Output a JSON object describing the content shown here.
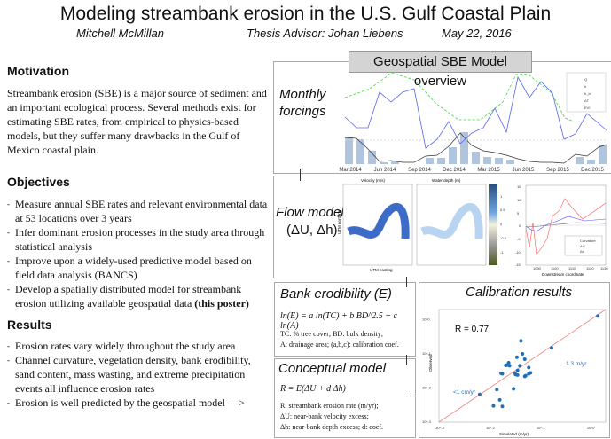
{
  "header": {
    "title": "Modeling streambank erosion in the U.S. Gulf Coastal Plain",
    "author": "Mitchell McMillan",
    "advisor": "Thesis Advisor: Johan Liebens",
    "date": "May 22, 2016"
  },
  "motivation": {
    "heading": "Motivation",
    "text": "Streambank erosion (SBE) is a major source of sediment and an important ecological process. Several methods exist for estimating SBE rates, from empirical to physics-based models, but they suffer many drawbacks in the Gulf of Mexico coastal plain."
  },
  "objectives": {
    "heading": "Objectives",
    "items": [
      "Measure annual SBE rates and relevant environmental data at 53  locations over 3 years",
      "Infer dominant erosion processes in the study area through statistical analysis",
      "Improve upon a widely-used predictive model based on field data analysis (BANCS)",
      "Develop a spatially distributed model for streambank erosion utilizing available geospatial data"
    ],
    "last_bold": "(this poster)"
  },
  "results": {
    "heading": "Results",
    "items": [
      "Erosion rates vary widely throughout the study area",
      "Channel curvature, vegetation density, bank erodibility, sand content, mass wasting, and extreme precipitation events all influence erosion rates",
      "Erosion is well predicted by the geospatial model —>"
    ]
  },
  "overview": {
    "title": "Geospatial SBE Model overview",
    "forcings_label": "Monthly forcings",
    "x_ticks": [
      "Mar 2014",
      "Jun 2014",
      "Sep 2014",
      "Dec 2014",
      "Mar 2015",
      "Jun 2015",
      "Sep 2015",
      "Dec 2015"
    ],
    "legend": [
      "Q",
      "h",
      "h_bf",
      "ΔT",
      "EVI"
    ]
  },
  "flow": {
    "label": "Flow model",
    "label2": "(ΔU, Δh)",
    "map1_title": "Velocity (m/s)",
    "map2_title": "Water depth (m)",
    "ylabel": "UTM northing",
    "xlabel": "UTM easting",
    "colorbar_ticks": [
      "1",
      "0.5",
      "0",
      "-0.5",
      "-1"
    ],
    "plot_xlabel": "Downstream coordinate",
    "plot_yticks": [
      "15",
      "10",
      "5",
      "0",
      "-5",
      "-10",
      "-15"
    ],
    "plot_xticks": [
      "1090",
      "1100",
      "1110",
      "1120",
      "1130"
    ],
    "legend": [
      "Curvature",
      "ΔU",
      "Δh"
    ]
  },
  "bank": {
    "title": "Bank erodibility (E)",
    "equation": "ln(E) = a ln(TC) + b BD^2.5 + c ln(A)",
    "desc1": "TC: % tree cover; BD: bulk density;",
    "desc2": "A: drainage area; (a,b,c): calibration coef."
  },
  "concept": {
    "title": "Conceptual model",
    "equation": "R = E(ΔU + d Δh)",
    "desc1": "R: streambank erosion rate (m/yr);",
    "desc2": "ΔU: near-bank velocity excess;",
    "desc3": "Δh: near-bank depth excess; d: coef."
  },
  "calibration": {
    "title": "Calibration results",
    "r": "R = 0.77",
    "note_high": "1.3 m/yr",
    "note_low": "<1 cm/yr",
    "xlabel": "Simulated (m/yr)",
    "ylabel": "Observed",
    "ticks": [
      "10^-3",
      "10^-2",
      "10^-1",
      "10^0"
    ]
  },
  "chart_data": {
    "type": "scatter",
    "title": "Calibration results",
    "xlabel": "Simulated (m/yr)",
    "ylabel": "Observed",
    "scale": "log",
    "xlim": [
      0.001,
      2
    ],
    "ylim": [
      0.001,
      2
    ],
    "points": [
      [
        0.0064,
        0.0065
      ],
      [
        0.012,
        0.003
      ],
      [
        0.014,
        0.009
      ],
      [
        0.016,
        0.0045
      ],
      [
        0.017,
        0.027
      ],
      [
        0.018,
        0.026
      ],
      [
        0.018,
        0.0029
      ],
      [
        0.021,
        0.046
      ],
      [
        0.022,
        0.047
      ],
      [
        0.024,
        0.055
      ],
      [
        0.025,
        0.045
      ],
      [
        0.03,
        0.0095
      ],
      [
        0.032,
        0.027
      ],
      [
        0.033,
        0.025
      ],
      [
        0.035,
        0.08
      ],
      [
        0.036,
        0.033
      ],
      [
        0.036,
        0.024
      ],
      [
        0.04,
        0.045
      ],
      [
        0.042,
        0.24
      ],
      [
        0.045,
        0.1
      ],
      [
        0.05,
        0.07
      ],
      [
        0.05,
        0.022
      ],
      [
        0.052,
        0.023
      ],
      [
        0.06,
        0.04
      ],
      [
        0.06,
        0.026
      ],
      [
        0.065,
        0.028
      ],
      [
        0.17,
        0.15
      ],
      [
        1.4,
        1.3
      ]
    ]
  }
}
